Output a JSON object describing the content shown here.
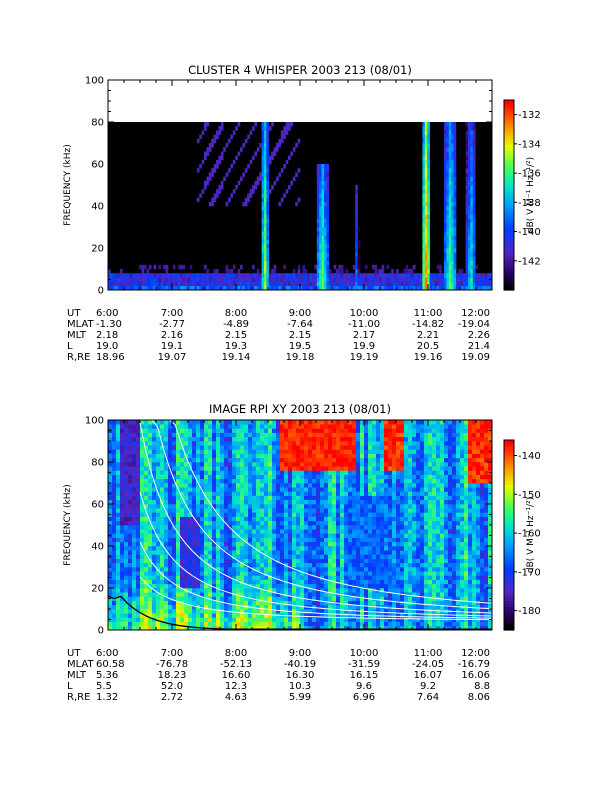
{
  "chart_data": [
    {
      "type": "heatmap",
      "title": "CLUSTER 4 WHISPER 2003 213 (08/01)",
      "ylabel": "FREQUENCY (kHz)",
      "ylim": [
        0,
        100
      ],
      "y_ticks": [
        "0",
        "20",
        "40",
        "60",
        "80",
        "100"
      ],
      "x_range_hours": [
        6,
        12
      ],
      "colorbar": {
        "label": "dB( V M⁻¹ Hz⁻¹/²)",
        "ticks": [
          "-132",
          "-134",
          "-136",
          "-138",
          "-140",
          "-142"
        ],
        "range": [
          -144,
          -131
        ]
      },
      "data_ceiling_khz": 80,
      "emission_bursts": [
        {
          "t_start": 8.4,
          "t_end": 8.5,
          "f_max": 80,
          "level": -135
        },
        {
          "t_start": 9.25,
          "t_end": 9.45,
          "f_max": 60,
          "level": -136
        },
        {
          "t_start": 9.85,
          "t_end": 9.92,
          "f_max": 50,
          "level": -139
        },
        {
          "t_start": 10.92,
          "t_end": 11.02,
          "f_max": 80,
          "level": -133
        },
        {
          "t_start": 11.25,
          "t_end": 11.45,
          "f_max": 80,
          "level": -136
        },
        {
          "t_start": 11.6,
          "t_end": 11.75,
          "f_max": 80,
          "level": -137
        }
      ],
      "ephemeris": {
        "rows": [
          {
            "label": "UT",
            "values": [
              "6:00",
              "7:00",
              "8:00",
              "9:00",
              "10:00",
              "11:00",
              "12:00"
            ]
          },
          {
            "label": "MLAT",
            "values": [
              "-1.30",
              "-2.77",
              "-4.89",
              "-7.64",
              "-11.00",
              "-14.82",
              "-19.04"
            ]
          },
          {
            "label": "MLT",
            "values": [
              "2.18",
              "2.16",
              "2.15",
              "2.15",
              "2.17",
              "2.21",
              "2.26"
            ]
          },
          {
            "label": "L",
            "values": [
              "19.0",
              "19.1",
              "19.3",
              "19.5",
              "19.9",
              "20.5",
              "21.4"
            ]
          },
          {
            "label": "R,RE",
            "values": [
              "18.96",
              "19.07",
              "19.14",
              "19.18",
              "19.19",
              "19.16",
              "19.09"
            ]
          }
        ]
      }
    },
    {
      "type": "heatmap",
      "title": "IMAGE RPI XY 2003 213 (08/01)",
      "ylabel": "FREQUENCY (kHz)",
      "ylim": [
        0,
        100
      ],
      "y_ticks": [
        "0",
        "20",
        "40",
        "60",
        "80",
        "100"
      ],
      "x_range_hours": [
        6,
        12
      ],
      "colorbar": {
        "label": "dB( V M⁻¹ Hz⁻¹/²)",
        "ticks": [
          "-140",
          "-150",
          "-160",
          "-170",
          "-180"
        ],
        "range": [
          -185,
          -136
        ]
      },
      "ephemeris": {
        "rows": [
          {
            "label": "UT",
            "values": [
              "6:00",
              "7:00",
              "8:00",
              "9:00",
              "10:00",
              "11:00",
              "12:00"
            ]
          },
          {
            "label": "MLAT",
            "values": [
              "60.58",
              "-76.78",
              "-52.13",
              "-40.19",
              "-31.59",
              "-24.05",
              "-16.79"
            ]
          },
          {
            "label": "MLT",
            "values": [
              "5.36",
              "18.23",
              "16.60",
              "16.30",
              "16.15",
              "16.07",
              "16.06"
            ]
          },
          {
            "label": "L",
            "values": [
              "5.5",
              "52.0",
              "12.3",
              "10.3",
              "9.6",
              "9.2",
              "8.8"
            ]
          },
          {
            "label": "R,RE",
            "values": [
              "1.32",
              "2.72",
              "4.63",
              "5.99",
              "6.96",
              "7.64",
              "8.06"
            ]
          }
        ]
      }
    }
  ]
}
